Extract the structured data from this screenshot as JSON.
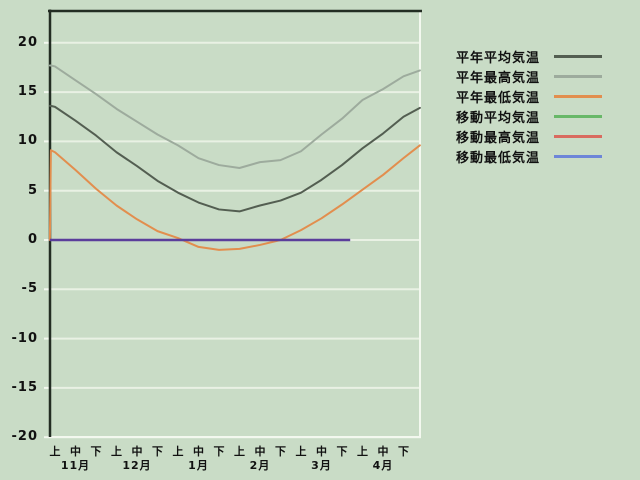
{
  "colors": {
    "background": "#c9dcc6",
    "grid": "#e9f1e4",
    "border_light": "#f3f8ef",
    "axis_frame": "#232d23",
    "text": "#111111",
    "moving_overlap": "#5b3e9b"
  },
  "chart_data": {
    "type": "line",
    "title": "",
    "legend_position": "right",
    "grid": true,
    "x_axis": {
      "period_labels": [
        "上",
        "中",
        "下",
        "上",
        "中",
        "下",
        "上",
        "中",
        "下",
        "上",
        "中",
        "下",
        "上",
        "中",
        "下",
        "上",
        "中",
        "下"
      ],
      "month_labels": [
        "11月",
        "12月",
        "1月",
        "2月",
        "3月",
        "4月"
      ]
    },
    "y_axis": {
      "tick_labels": [
        "20",
        "15",
        "10",
        "5",
        "0",
        "-5",
        "-10",
        "-15",
        "-20"
      ],
      "min": -20,
      "max": 20
    },
    "series": [
      {
        "key": "normal_avg",
        "label": "平年平均気温",
        "color": "#535e51",
        "x_index": [
          -0.25,
          -0.2,
          0,
          1,
          2,
          3,
          4,
          5,
          6,
          7,
          8,
          9,
          10,
          11,
          12,
          13,
          14,
          15,
          16,
          17,
          17.8
        ],
        "values": [
          13.6,
          13.6,
          13.5,
          12.1,
          10.6,
          8.9,
          7.5,
          6.0,
          4.8,
          3.8,
          3.1,
          2.9,
          3.5,
          4.0,
          4.8,
          6.1,
          7.6,
          9.3,
          10.8,
          12.5,
          13.4
        ]
      },
      {
        "key": "normal_max",
        "label": "平年最高気温",
        "color": "#9dab9d",
        "x_index": [
          -0.25,
          -0.2,
          0,
          1,
          2,
          3,
          4,
          5,
          6,
          7,
          8,
          9,
          10,
          11,
          12,
          13,
          14,
          15,
          16,
          17,
          17.8
        ],
        "values": [
          17.7,
          17.7,
          17.6,
          16.2,
          14.8,
          13.3,
          12.0,
          10.7,
          9.6,
          8.3,
          7.6,
          7.3,
          7.9,
          8.1,
          9.0,
          10.7,
          12.3,
          14.2,
          15.3,
          16.6,
          17.2
        ]
      },
      {
        "key": "normal_min",
        "label": "平年最低気温",
        "color": "#e28e4e",
        "x_index": [
          -0.25,
          -0.2,
          0,
          1,
          2,
          3,
          4,
          5,
          6,
          7,
          8,
          9,
          10,
          11,
          12,
          13,
          14,
          15,
          16,
          17,
          17.8
        ],
        "values": [
          0.0,
          9.1,
          8.9,
          7.1,
          5.2,
          3.5,
          2.1,
          0.9,
          0.2,
          -0.7,
          -1.0,
          -0.9,
          -0.5,
          0.0,
          1.0,
          2.2,
          3.6,
          5.1,
          6.6,
          8.3,
          9.6
        ]
      },
      {
        "key": "moving_avg",
        "label": "移動平均気温",
        "color": "#68b868",
        "constant_value": 0,
        "x_start_index": -0.25,
        "x_end_index": 14.4
      },
      {
        "key": "moving_max",
        "label": "移動最高気温",
        "color": "#d96b5f",
        "constant_value": 0,
        "x_start_index": -0.25,
        "x_end_index": 14.4
      },
      {
        "key": "moving_min",
        "label": "移動最低気温",
        "color": "#6d86d8",
        "constant_value": 0,
        "x_start_index": -0.25,
        "x_end_index": 14.4
      }
    ]
  }
}
